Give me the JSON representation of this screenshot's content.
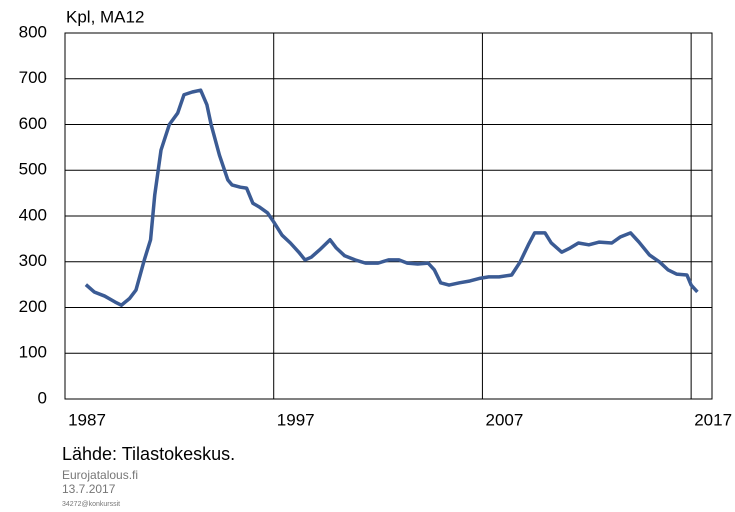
{
  "chart_data": {
    "type": "line",
    "y_label": "Kpl, MA12",
    "source": "Lähde: Tilastokeskus.",
    "footer": [
      "Eurojatalous.fi",
      "13.7.2017",
      "34272@konkurssit"
    ],
    "xlim": [
      1987,
      2018
    ],
    "xticks": [
      1987,
      1997,
      2007,
      2017
    ],
    "ylim": [
      0,
      800
    ],
    "yticks": [
      0,
      100,
      200,
      300,
      400,
      500,
      600,
      700,
      800
    ],
    "grid": true,
    "series": [
      {
        "color": "#3b5b94",
        "x": [
          1988.0,
          1988.4,
          1988.9,
          1989.4,
          1989.7,
          1990.1,
          1990.4,
          1990.8,
          1991.1,
          1991.3,
          1991.6,
          1992.0,
          1992.4,
          1992.7,
          1993.1,
          1993.5,
          1993.8,
          1994.0,
          1994.4,
          1994.8,
          1995.0,
          1995.4,
          1995.7,
          1996.0,
          1996.3,
          1996.7,
          1997.0,
          1997.4,
          1997.8,
          1998.2,
          1998.5,
          1998.8,
          1999.2,
          1999.7,
          2000.0,
          2000.4,
          2000.9,
          2001.4,
          2002.0,
          2002.5,
          2003.0,
          2003.4,
          2003.9,
          2004.4,
          2004.7,
          2005.0,
          2005.4,
          2005.9,
          2006.4,
          2006.9,
          2007.3,
          2007.8,
          2008.4,
          2008.8,
          2009.2,
          2009.5,
          2010.0,
          2010.3,
          2010.8,
          2011.2,
          2011.6,
          2012.1,
          2012.6,
          2013.2,
          2013.6,
          2014.1,
          2014.5,
          2015.0,
          2015.5,
          2015.9,
          2016.3,
          2016.8,
          2017.0,
          2017.3
        ],
        "values": [
          250,
          234,
          225,
          212,
          205,
          220,
          238,
          304,
          348,
          446,
          544,
          600,
          625,
          665,
          671,
          675,
          643,
          600,
          533,
          479,
          468,
          463,
          461,
          428,
          420,
          407,
          387,
          358,
          341,
          321,
          304,
          310,
          326,
          348,
          330,
          313,
          304,
          297,
          297,
          304,
          304,
          297,
          295,
          297,
          282,
          254,
          249,
          254,
          258,
          264,
          267,
          267,
          271,
          299,
          337,
          363,
          363,
          341,
          321,
          330,
          341,
          337,
          343,
          341,
          354,
          363,
          343,
          315,
          299,
          282,
          273,
          271,
          249,
          234
        ]
      }
    ]
  }
}
